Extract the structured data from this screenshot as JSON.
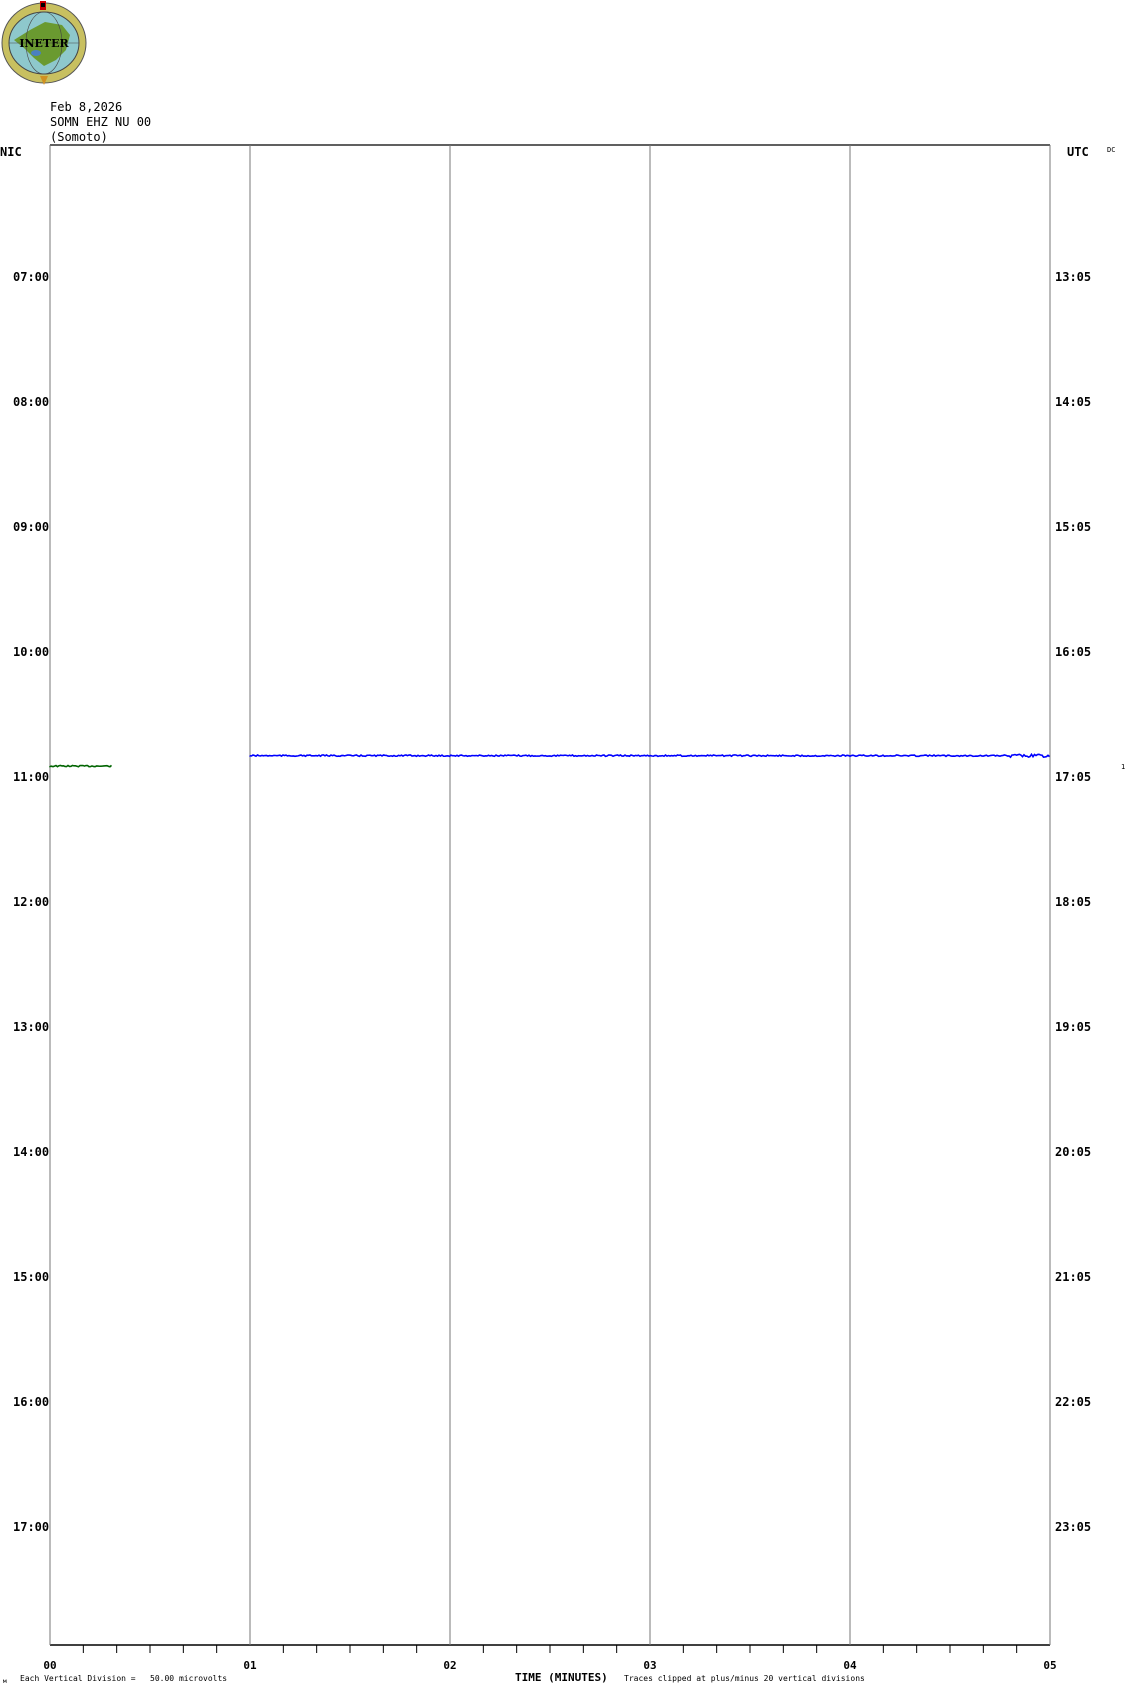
{
  "logo": {
    "text": "INETER"
  },
  "header": {
    "date": "Feb 8,2026",
    "station": "SOMN EHZ NU 00",
    "location": "(Somoto)"
  },
  "chart_data": {
    "type": "line",
    "title": "",
    "left_axis_title": "NIC",
    "right_axis_title": "UTC",
    "corner_label": "DC",
    "xlabel": "TIME (MINUTES)",
    "xlim": [
      0,
      5
    ],
    "x_tick_labels": [
      "00",
      "01",
      "02",
      "03",
      "04",
      "05"
    ],
    "left_tick_labels": [
      "07:00",
      "08:00",
      "09:00",
      "10:00",
      "11:00",
      "12:00",
      "13:00",
      "14:00",
      "15:00",
      "16:00",
      "17:00"
    ],
    "right_tick_labels": [
      "13:05",
      "14:05",
      "15:05",
      "16:05",
      "17:05",
      "18:05",
      "19:05",
      "20:05",
      "21:05",
      "22:05",
      "23:05"
    ],
    "grid": true,
    "series": [
      {
        "color": "#006400",
        "start_hour_nic": "10:55",
        "x_start_min": 0,
        "x_end_min": 0.31
      },
      {
        "color": "#0000ff",
        "start_hour_nic": "10:50",
        "x_start_min": 1.0,
        "x_end_min": 5.0
      }
    ],
    "row_marker": "1",
    "footer_left": "Each Vertical Division =   50.00 microvolts",
    "footer_right": "Traces clipped at plus/minus 20 vertical divisions"
  }
}
